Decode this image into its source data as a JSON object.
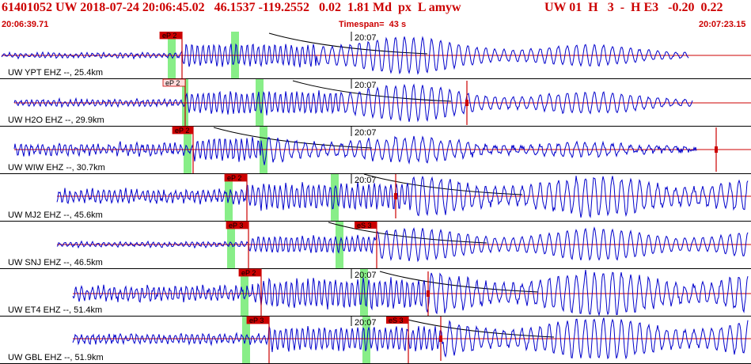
{
  "header": {
    "event_line": "61401052 UW 2018-07-24 20:06:45.02   46.1537 -119.2552   0.02  1.81 Md  px  L amyw",
    "channel_info": "UW 01  H   3  -  H E3   -0.20  0.22",
    "start_time": "20:06:39.71",
    "timespan": "Timespan=  43 s",
    "end_time": "20:07:23.15"
  },
  "colors": {
    "trace": "#0000cc",
    "pick": "#cc0000",
    "window": "#88ee88",
    "header_text": "#cc0000"
  },
  "traces": [
    {
      "label": "UW YPT EHZ --, 25.4km",
      "time_tag": "20:07",
      "pick_label": "eP 2",
      "pick_style": "filled",
      "s_label": ""
    },
    {
      "label": "UW H2O EHZ --, 29.9km",
      "time_tag": "20:07",
      "pick_label": "eP 2",
      "pick_style": "outlined",
      "s_label": ""
    },
    {
      "label": "UW WIW EHZ --, 30.7km",
      "time_tag": "20:07",
      "pick_label": "eP 2",
      "pick_style": "filled",
      "s_label": ""
    },
    {
      "label": "UW MJ2 EHZ --, 45.6km",
      "time_tag": "20:07",
      "pick_label": "eP 2",
      "pick_style": "filled",
      "s_label": ""
    },
    {
      "label": "UW SNJ EHZ --, 46.5km",
      "time_tag": "",
      "pick_label": "eP 3",
      "pick_style": "filled",
      "s_label": "eS 3"
    },
    {
      "label": "UW ET4 EHZ --, 51.4km",
      "time_tag": "20:07",
      "pick_label": "eP 2",
      "pick_style": "filled",
      "s_label": ""
    },
    {
      "label": "UW GBL EHZ --, 51.9km",
      "time_tag": "20:07",
      "pick_label": "eP 3",
      "pick_style": "filled",
      "s_label": "eS 3"
    }
  ]
}
